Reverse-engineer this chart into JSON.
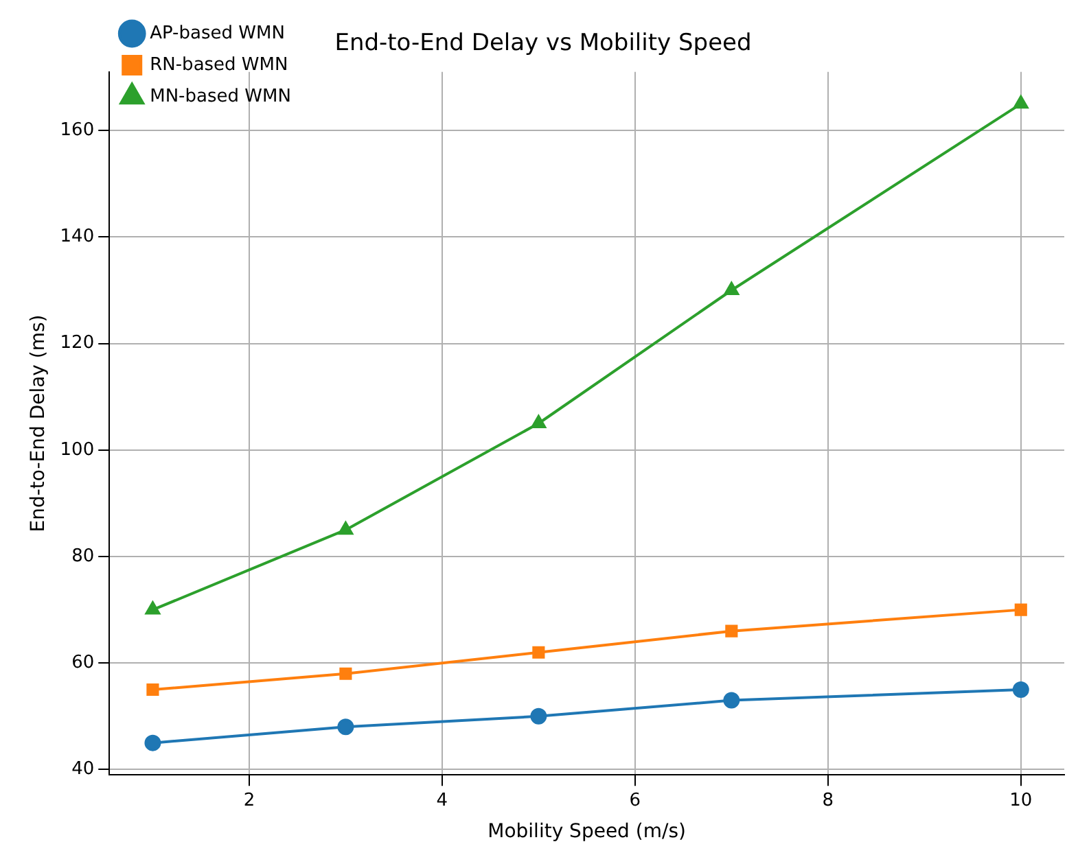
{
  "chart_data": {
    "type": "line",
    "title": "End-to-End Delay vs Mobility Speed",
    "xlabel": "Mobility Speed (m/s)",
    "ylabel": "End-to-End Delay (ms)",
    "x": [
      1,
      3,
      5,
      7,
      10
    ],
    "series": [
      {
        "name": "AP-based WMN",
        "color": "#1f77b4",
        "marker": "circle",
        "values": [
          45,
          48,
          50,
          53,
          55
        ]
      },
      {
        "name": "RN-based WMN",
        "color": "#ff7f0e",
        "marker": "square",
        "values": [
          55,
          58,
          62,
          66,
          70
        ]
      },
      {
        "name": "MN-based WMN",
        "color": "#2ca02c",
        "marker": "triangle",
        "values": [
          70,
          85,
          105,
          130,
          165
        ]
      }
    ],
    "xlim": [
      0.55,
      10.45
    ],
    "xticks": [
      2,
      4,
      6,
      8,
      10
    ],
    "ylim": [
      39,
      171
    ],
    "yticks": [
      40,
      60,
      80,
      100,
      120,
      140,
      160
    ],
    "grid": true,
    "legend": "top left",
    "line_style": "solid"
  }
}
